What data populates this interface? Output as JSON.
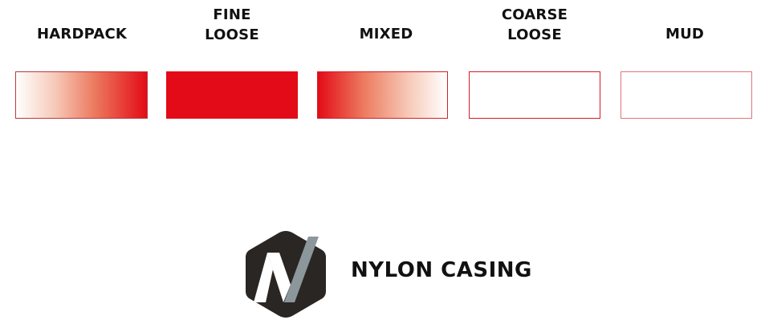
{
  "terrains": [
    {
      "lines": [
        "HARDPACK"
      ],
      "fill": "gradient-to-right",
      "level": "light-to-full"
    },
    {
      "lines": [
        "FINE",
        "LOOSE"
      ],
      "fill": "solid",
      "level": "full"
    },
    {
      "lines": [
        "MIXED"
      ],
      "fill": "gradient-to-left",
      "level": "full-to-light"
    },
    {
      "lines": [
        "COARSE",
        "LOOSE"
      ],
      "fill": "none",
      "level": "none"
    },
    {
      "lines": [
        "MUD"
      ],
      "fill": "none",
      "level": "none"
    }
  ],
  "casing": {
    "label": "NYLON CASING",
    "icon": "nylon-n-hexagon-logo"
  },
  "colors": {
    "accent": "#e30b17",
    "logo_dark": "#2a2624",
    "logo_gray": "#8c979c"
  }
}
